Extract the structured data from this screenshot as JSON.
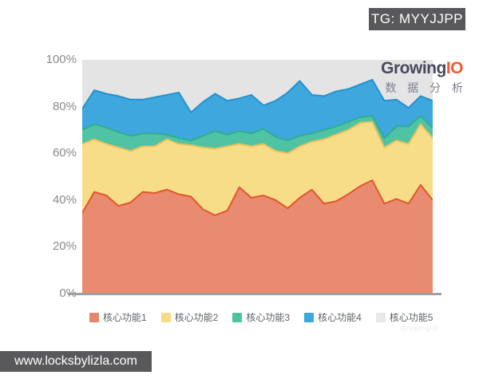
{
  "badges": {
    "top": "TG: MYYJJPP",
    "bottom": "www.locksbylizla.com"
  },
  "logo": {
    "part1": "Growing",
    "part2": "IO",
    "subtitle": "数 据 分 析"
  },
  "watermark": "GrowingIO",
  "colors": {
    "badge_bg": "#59595b",
    "logo_main": "#454a5c",
    "logo_accent": "#f25b2c",
    "plot_bg": "#e4e4e4",
    "axis_text": "#8a8a8a",
    "axis_line": "#a0a0a0",
    "legend_text": "#5f6368"
  },
  "chart_data": {
    "type": "area",
    "stacked": true,
    "unit": "percent",
    "title": "",
    "xlabel": "",
    "ylabel": "",
    "ylim": [
      0,
      100
    ],
    "grid": false,
    "legend_position": "bottom",
    "y_ticks": [
      {
        "label": "100%",
        "value": 100
      },
      {
        "label": "80%",
        "value": 80
      },
      {
        "label": "60%",
        "value": 60
      },
      {
        "label": "40%",
        "value": 40
      },
      {
        "label": "20%",
        "value": 20
      },
      {
        "label": "0%",
        "value": 0
      }
    ],
    "x_point_count": 30,
    "series": [
      {
        "name": "核心功能1",
        "fill": "#e98b70",
        "stroke": "#e0562c",
        "legend_color": "#e4876c",
        "values": [
          34.5,
          43.5,
          42,
          37.5,
          39,
          43.5,
          43,
          44.5,
          42.5,
          41.5,
          36,
          33.5,
          35.5,
          45.5,
          41,
          42,
          40,
          36.5,
          41,
          44.5,
          38.5,
          39.5,
          42.5,
          46,
          48.5,
          38.5,
          40.5,
          38.5,
          46.5,
          40
        ]
      },
      {
        "name": "核心功能2",
        "fill": "#f8dd88",
        "stroke": "#eec05a",
        "legend_color": "#f7dc87",
        "values": [
          29.5,
          22.5,
          22,
          25,
          22,
          19.5,
          20,
          21.5,
          21.5,
          22,
          26.5,
          28.5,
          27.5,
          18.5,
          22,
          22,
          21,
          23.5,
          22,
          20.5,
          27.5,
          28.5,
          27.5,
          27,
          25,
          24,
          25,
          25.5,
          26,
          26.5
        ]
      },
      {
        "name": "核心功能3",
        "fill": "#50c3a5",
        "stroke": "#2fae8f",
        "legend_color": "#4ec3a4",
        "values": [
          6,
          6.5,
          7,
          6.5,
          6.5,
          5.5,
          5.5,
          2,
          2.5,
          2,
          5,
          7.5,
          5,
          5.5,
          5.5,
          6.5,
          6,
          5.5,
          4.5,
          3.5,
          4,
          3.5,
          3.5,
          2.5,
          2.5,
          4,
          6,
          7.5,
          3.5,
          4.5
        ]
      },
      {
        "name": "核心功能4",
        "fill": "#3ea7dd",
        "stroke": "#2492cd",
        "legend_color": "#3ea7dd",
        "values": [
          9,
          14.5,
          14.5,
          15.5,
          15.5,
          14.5,
          15.5,
          17,
          19.5,
          12,
          14.5,
          16,
          14.5,
          14,
          16.5,
          10,
          15.5,
          20.5,
          23.5,
          16.5,
          14.5,
          15,
          14,
          14,
          15.5,
          16,
          11.5,
          8,
          8.5,
          11.5
        ]
      },
      {
        "name": "核心功能5",
        "fill": "#e4e4e4",
        "stroke": "#e4e4e4",
        "legend_color": "#e8e8e8",
        "values": [
          21,
          13,
          14.5,
          15.5,
          17,
          17,
          16,
          15,
          14,
          22.5,
          18,
          14.5,
          17.5,
          16.5,
          15,
          19.5,
          17.5,
          14,
          9,
          15,
          15.5,
          13.5,
          12.5,
          10.5,
          8.5,
          17.5,
          17,
          20.5,
          15.5,
          17.5
        ]
      }
    ]
  }
}
